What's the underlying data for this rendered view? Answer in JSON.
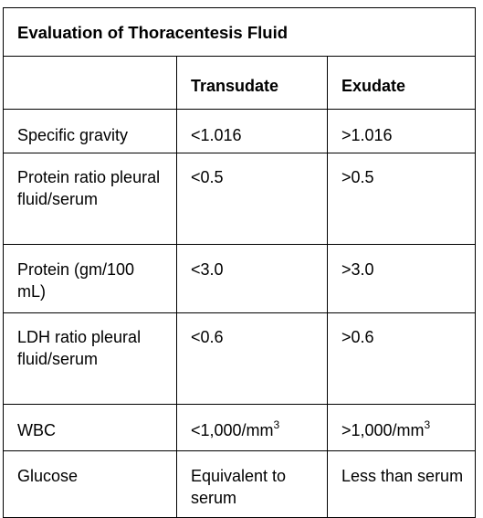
{
  "table": {
    "title": "Evaluation of Thoracentesis Fluid",
    "headers": [
      "",
      "Transudate",
      "Exudate"
    ],
    "rows": [
      {
        "label": "Specific gravity",
        "transudate": "<1.016",
        "exudate": ">1.016"
      },
      {
        "label": "Protein ratio pleural fluid/serum",
        "transudate": "<0.5",
        "exudate": ">0.5"
      },
      {
        "label": "Protein (gm/100 mL)",
        "transudate": "<3.0",
        "exudate": ">3.0"
      },
      {
        "label": "LDH ratio pleural fluid/serum",
        "transudate": "<0.6",
        "exudate": ">0.6"
      },
      {
        "label": "WBC",
        "transudate": "<1,000/mm",
        "transudate_sup": "3",
        "exudate": ">1,000/mm",
        "exudate_sup": "3"
      },
      {
        "label": "Glucose",
        "transudate": "Equivalent to serum",
        "exudate": "Less than serum"
      }
    ]
  }
}
